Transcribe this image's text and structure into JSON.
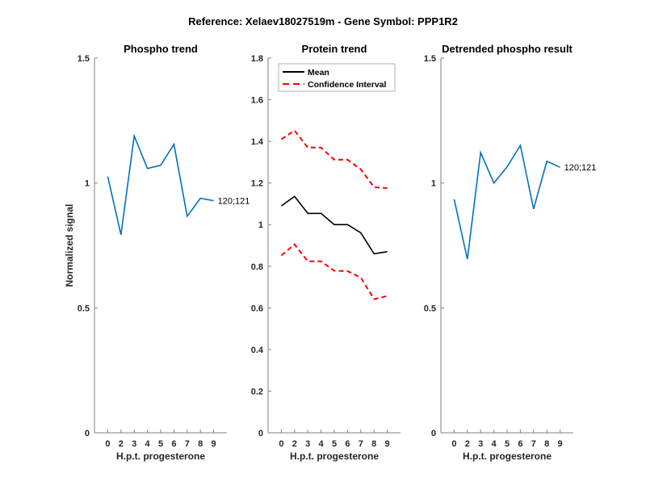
{
  "figure": {
    "title": "Reference:  Xelaev18027519m - Gene Symbol:  PPP1R2"
  },
  "chart_data": [
    {
      "type": "line",
      "title": "Phospho trend",
      "xlabel": "H.p.t. progesterone",
      "ylabel": "Normalized signal",
      "categories": [
        "0",
        "2",
        "3",
        "4",
        "5",
        "6",
        "7",
        "8",
        "9"
      ],
      "ylim": [
        0,
        1.5
      ],
      "yticks": [
        0,
        0.5,
        1,
        1.5
      ],
      "ytick_labels": [
        "0",
        "0.5",
        "1",
        "1.5"
      ],
      "grid": false,
      "series": [
        {
          "name": "120;121",
          "color": "#0072BD",
          "style": "solid",
          "values": [
            1.026,
            0.793,
            1.188,
            1.058,
            1.071,
            1.155,
            0.867,
            0.939,
            0.929
          ],
          "end_label": "120;121"
        }
      ]
    },
    {
      "type": "line",
      "title": "Protein trend",
      "xlabel": "H.p.t. progesterone",
      "ylabel": "",
      "categories": [
        "0",
        "2",
        "3",
        "4",
        "5",
        "6",
        "7",
        "8",
        "9"
      ],
      "ylim": [
        0,
        1.8
      ],
      "yticks": [
        0,
        0.2,
        0.4,
        0.6,
        0.8,
        1,
        1.2,
        1.4,
        1.6,
        1.8
      ],
      "ytick_labels": [
        "0",
        "0.2",
        "0.4",
        "0.6",
        "0.8",
        "1",
        "1.2",
        "1.4",
        "1.6",
        "1.8"
      ],
      "grid": false,
      "legend": {
        "placement": "top-left",
        "entries": [
          {
            "label": "Mean",
            "color": "#000000",
            "style": "solid"
          },
          {
            "label": "Confidence Interval",
            "color": "#FF0000",
            "style": "dashed"
          }
        ]
      },
      "series": [
        {
          "name": "Mean",
          "color": "#000000",
          "style": "solid",
          "values": [
            1.09,
            1.136,
            1.054,
            1.054,
            1.0,
            1.0,
            0.961,
            0.86,
            0.87
          ]
        },
        {
          "name": "Confidence Interval (upper)",
          "color": "#FF0000",
          "style": "dashed",
          "values": [
            1.41,
            1.452,
            1.37,
            1.37,
            1.312,
            1.312,
            1.266,
            1.18,
            1.175
          ]
        },
        {
          "name": "Confidence Interval (lower)",
          "color": "#FF0000",
          "style": "dashed",
          "values": [
            0.852,
            0.905,
            0.824,
            0.824,
            0.778,
            0.777,
            0.746,
            0.642,
            0.657
          ]
        }
      ]
    },
    {
      "type": "line",
      "title": "Detrended phospho result",
      "xlabel": "H.p.t. progesterone",
      "ylabel": "",
      "categories": [
        "0",
        "2",
        "3",
        "4",
        "5",
        "6",
        "7",
        "8",
        "9"
      ],
      "ylim": [
        0,
        1.5
      ],
      "yticks": [
        0,
        0.5,
        1,
        1.5
      ],
      "ytick_labels": [
        "0",
        "0.5",
        "1",
        "1.5"
      ],
      "grid": false,
      "series": [
        {
          "name": "120;121",
          "color": "#0072BD",
          "style": "solid",
          "values": [
            0.935,
            0.695,
            1.122,
            1.0,
            1.065,
            1.151,
            0.896,
            1.087,
            1.063
          ],
          "end_label": "120;121"
        }
      ]
    }
  ]
}
